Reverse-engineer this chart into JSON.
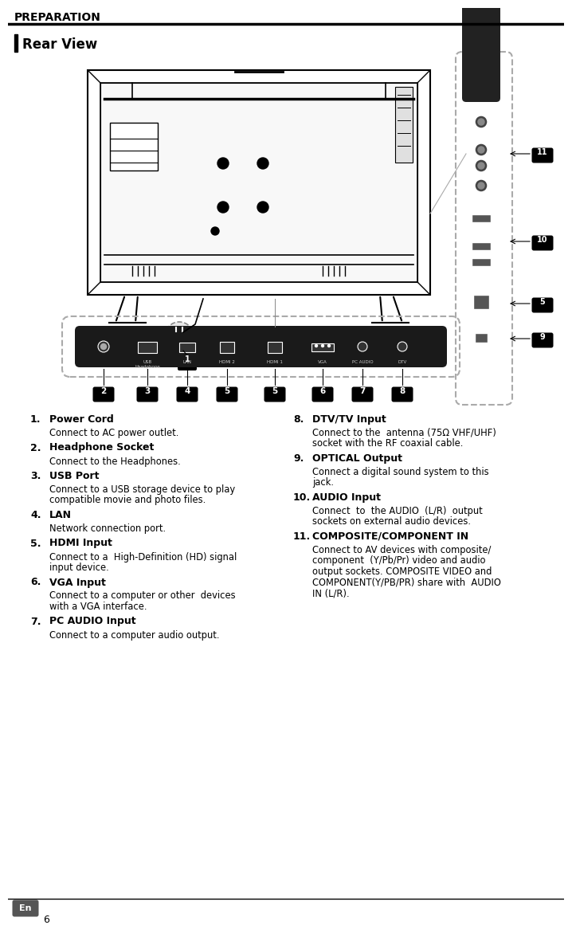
{
  "page_title": "PREPARATION",
  "section_title": "Rear View",
  "bg_color": "#ffffff",
  "title_color": "#000000",
  "section_title_color": "#000000",
  "items_left": [
    {
      "num": "1.",
      "heading": "Power Cord",
      "body": "Connect to AC power outlet."
    },
    {
      "num": "2.",
      "heading": "Headphone Socket",
      "body": "Connect to the Headphones."
    },
    {
      "num": "3.",
      "heading": "USB Port",
      "body": "Connect to a USB storage device to play\ncompatible movie and photo files."
    },
    {
      "num": "4.",
      "heading": "LAN",
      "body": "Network connection port."
    },
    {
      "num": "5.",
      "heading": "HDMI Input",
      "body": "Connect to a  High-Definition (HD) signal\ninput device."
    },
    {
      "num": "6.",
      "heading": "VGA Input",
      "body": "Connect to a computer or other  devices\nwith a VGA interface."
    },
    {
      "num": "7.",
      "heading": "PC AUDIO Input",
      "body": "Connect to a computer audio output."
    }
  ],
  "items_right": [
    {
      "num": "8.",
      "heading": "DTV/TV Input",
      "body": "Connect to the  antenna (75Ω VHF/UHF)\nsocket with the RF coaxial cable."
    },
    {
      "num": "9.",
      "heading": "OPTICAL Output",
      "body": "Connect a digital sound system to this\njack."
    },
    {
      "num": "10.",
      "heading": "AUDIO Input",
      "body": "Connect  to  the AUDIO  (L/R)  output\nsockets on external audio devices."
    },
    {
      "num": "11.",
      "heading": "COMPOSITE/COMPONENT IN",
      "body": "Connect to AV devices with composite/\ncomponent  (Y/Pb/Pr) video and audio\noutput sockets. COMPOSITE VIDEO and\nCOMPONENT(Y/PB/PR) share with  AUDIO\nIN (L/R)."
    }
  ],
  "footer_label": "En",
  "footer_page": "6"
}
